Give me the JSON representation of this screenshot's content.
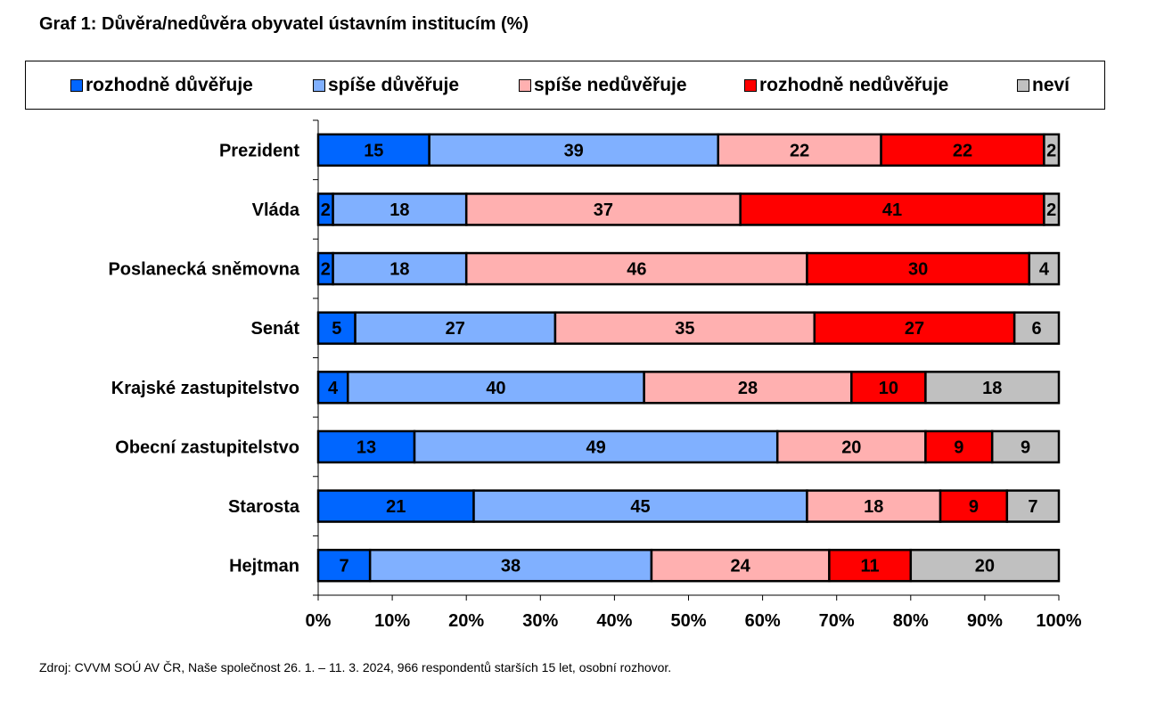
{
  "title": "Graf 1: Důvěra/nedůvěra obyvatel ústavním institucím (%)",
  "source": "Zdroj: CVVM SOÚ AV ČR, Naše společnost 26. 1. – 11. 3. 2024, 966 respondentů starších 15 let, osobní rozhovor.",
  "chart_data": {
    "type": "bar",
    "orientation": "horizontal",
    "stacked": true,
    "percent_stacked": true,
    "categories": [
      "Prezident",
      "Vláda",
      "Poslanecká sněmovna",
      "Senát",
      "Krajské zastupitelstvo",
      "Obecní zastupitelstvo",
      "Starosta",
      "Hejtman"
    ],
    "series": [
      {
        "name": "rozhodně důvěřuje",
        "color": "#0066ff",
        "values": [
          15,
          2,
          2,
          5,
          4,
          13,
          21,
          7
        ]
      },
      {
        "name": "spíše důvěřuje",
        "color": "#80b0ff",
        "values": [
          39,
          18,
          18,
          27,
          40,
          49,
          45,
          38
        ]
      },
      {
        "name": "spíše nedůvěřuje",
        "color": "#ffb0b0",
        "values": [
          22,
          37,
          46,
          35,
          28,
          20,
          18,
          24
        ]
      },
      {
        "name": "rozhodně nedůvěřuje",
        "color": "#ff0000",
        "values": [
          22,
          41,
          30,
          27,
          10,
          9,
          9,
          11
        ]
      },
      {
        "name": "neví",
        "color": "#c0c0c0",
        "values": [
          2,
          2,
          4,
          6,
          18,
          9,
          7,
          20
        ]
      }
    ],
    "xlim": [
      0,
      100
    ],
    "xticks": [
      "0%",
      "10%",
      "20%",
      "30%",
      "40%",
      "50%",
      "60%",
      "70%",
      "80%",
      "90%",
      "100%"
    ],
    "grid": false,
    "legend_position": "top"
  }
}
